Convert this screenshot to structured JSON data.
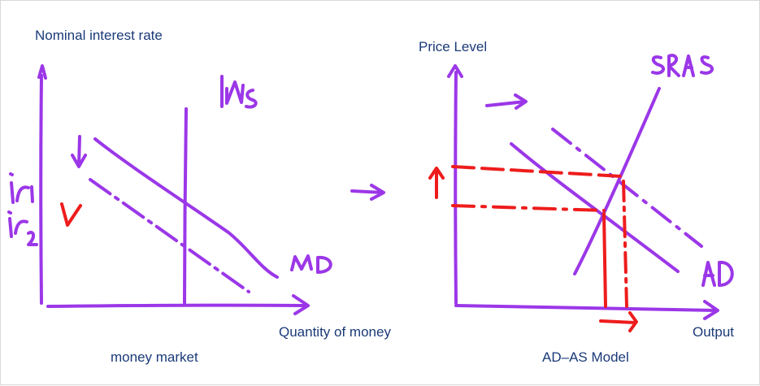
{
  "colors": {
    "pen": "#9b37e8",
    "red": "#ee1c1c",
    "text": "#1a3a78"
  },
  "money_market": {
    "y_axis_label": "Nominal interest rate",
    "x_axis_label": "Quantity of money",
    "caption": "money market",
    "handwritten": {
      "supply": "Ms",
      "demand": "MD",
      "rate1": "r1",
      "rate2": "r2",
      "y_axis_symbol": "r"
    }
  },
  "ad_as": {
    "y_axis_label": "Price Level",
    "x_axis_label": "Output",
    "caption": "AD–AS Model",
    "handwritten": {
      "supply": "SRAS",
      "demand": "AD"
    }
  }
}
